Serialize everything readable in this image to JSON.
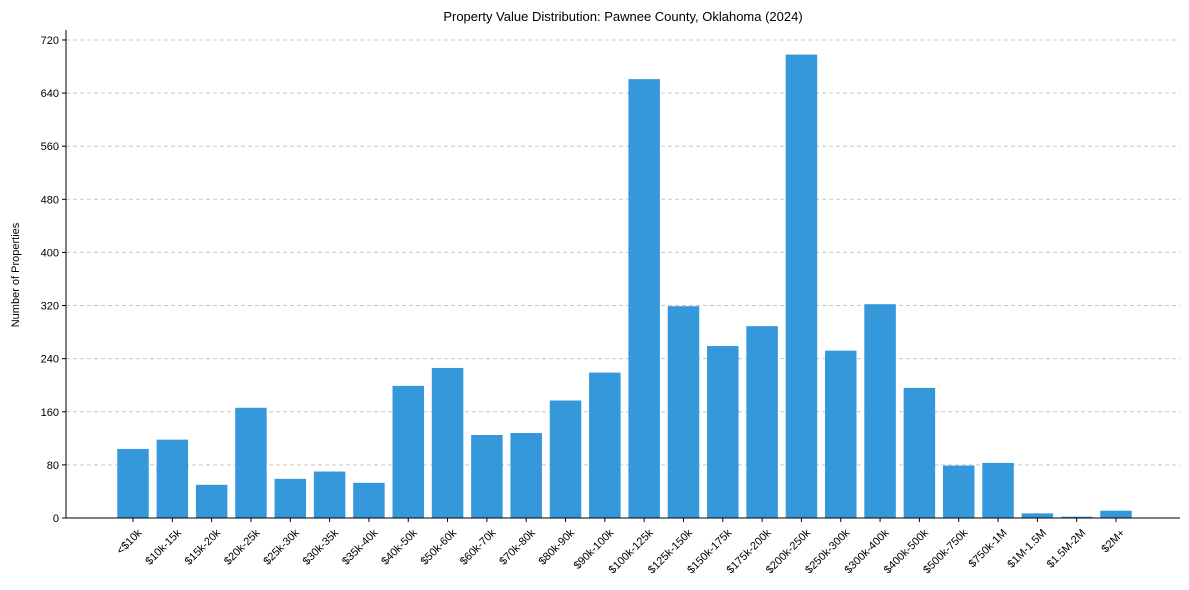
{
  "chart_data": {
    "type": "bar",
    "title": "Property Value Distribution: Pawnee County, Oklahoma (2024)",
    "xlabel": "",
    "ylabel": "Number of Properties",
    "ylim": [
      0,
      735
    ],
    "yticks": [
      0,
      80,
      160,
      240,
      320,
      400,
      480,
      560,
      640,
      720
    ],
    "grid": "horizontal dashed",
    "bar_color": "#3498db",
    "categories": [
      "<$10k",
      "$10k-15k",
      "$15k-20k",
      "$20k-25k",
      "$25k-30k",
      "$30k-35k",
      "$35k-40k",
      "$40k-50k",
      "$50k-60k",
      "$60k-70k",
      "$70k-80k",
      "$80k-90k",
      "$90k-100k",
      "$100k-125k",
      "$125k-150k",
      "$150k-175k",
      "$175k-200k",
      "$200k-250k",
      "$250k-300k",
      "$300k-400k",
      "$400k-500k",
      "$500k-750k",
      "$750k-1M",
      "$1M-1.5M",
      "$1.5M-2M",
      "$2M+"
    ],
    "values": [
      104,
      118,
      50,
      166,
      59,
      70,
      53,
      199,
      226,
      125,
      128,
      177,
      219,
      661,
      319,
      259,
      289,
      698,
      252,
      322,
      196,
      79,
      83,
      7,
      2,
      11
    ]
  }
}
